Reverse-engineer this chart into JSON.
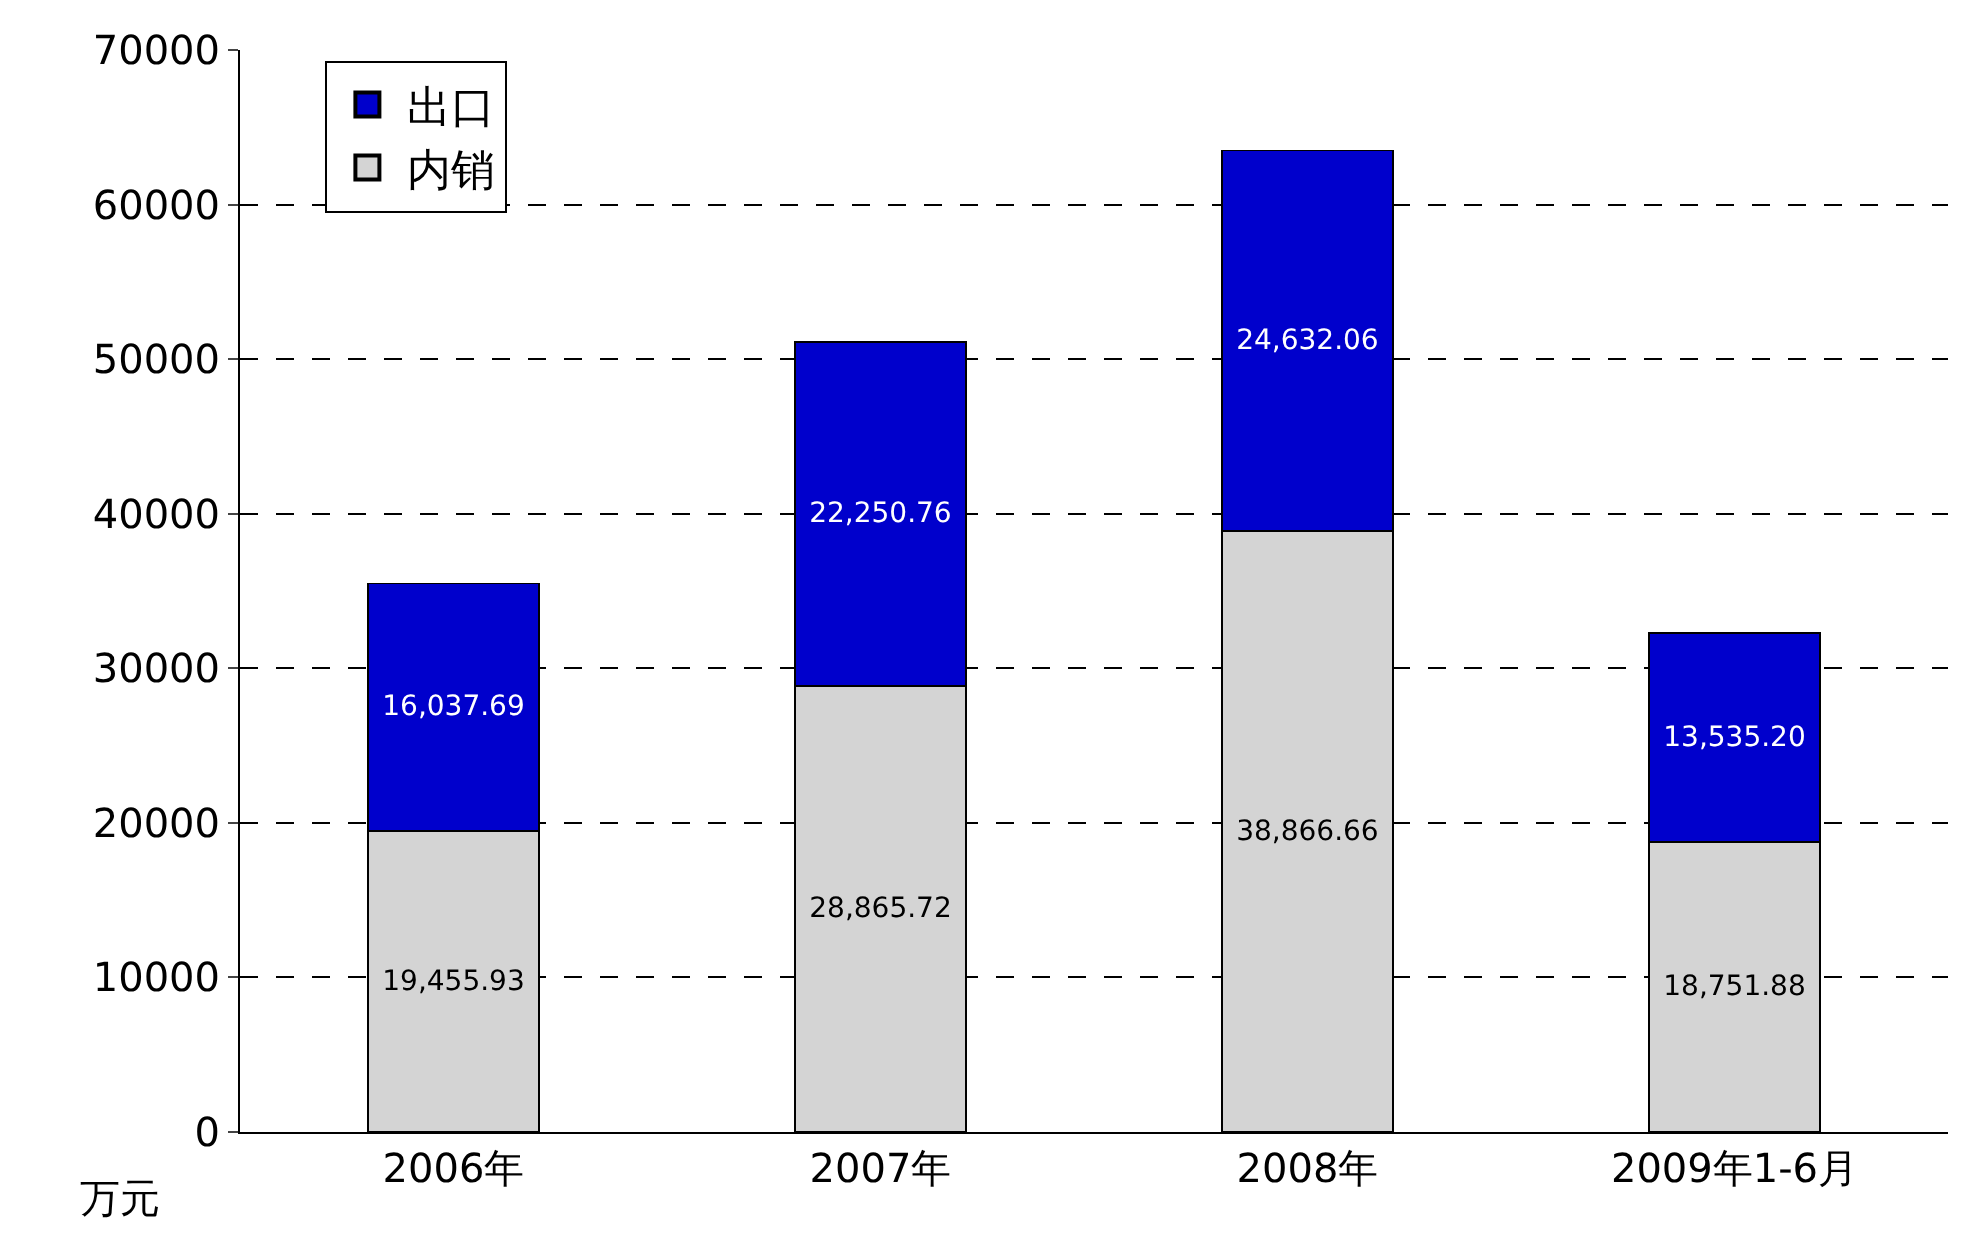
{
  "chart_data": {
    "type": "bar",
    "stacked": true,
    "ylabel": "万元",
    "categories": [
      "2006年",
      "2007年",
      "2008年",
      "2009年1-6月"
    ],
    "series": [
      {
        "name": "内销",
        "color": "#d4d4d4",
        "values": [
          19455.93,
          28865.72,
          38866.66,
          18751.88
        ],
        "value_labels": [
          "19,455.93",
          "28,865.72",
          "38,866.66",
          "18,751.88"
        ]
      },
      {
        "name": "出口",
        "color": "#0000cc",
        "values": [
          16037.69,
          22250.76,
          24632.06,
          13535.2
        ],
        "value_labels": [
          "16,037.69",
          "22,250.76",
          "24,632.06",
          "13,535.20"
        ]
      }
    ],
    "ylim": [
      0,
      70000
    ],
    "yticks": [
      0,
      10000,
      20000,
      30000,
      40000,
      50000,
      60000,
      70000
    ],
    "grid": "y",
    "legend": "top left"
  }
}
